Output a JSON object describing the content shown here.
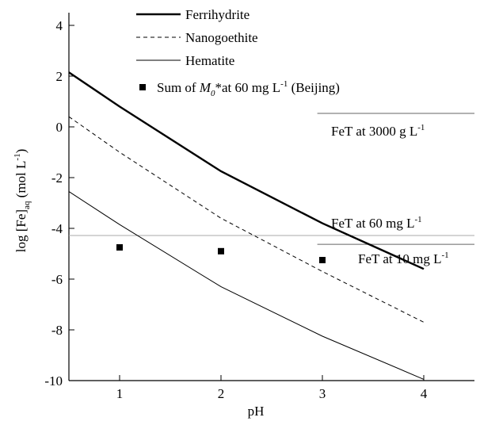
{
  "chart_data": {
    "type": "line",
    "x_label": "pH",
    "y_label": [
      {
        "text": "log [Fe]"
      },
      {
        "text": "aq",
        "style": "sub"
      },
      {
        "text": " (mol L"
      },
      {
        "text": "-1",
        "style": "sup"
      },
      {
        "text": ")"
      }
    ],
    "xlim": [
      0.5,
      4.5
    ],
    "ylim": [
      -10,
      4.5
    ],
    "xticks": [
      1,
      2,
      3,
      4
    ],
    "yticks": [
      -10,
      -8,
      -6,
      -4,
      -2,
      0,
      2,
      4
    ],
    "series": [
      {
        "name": [
          {
            "text": "Ferrihydrite"
          }
        ],
        "color": "#000000",
        "width": 2.4,
        "dash": "none",
        "x": [
          0.5,
          1,
          2,
          3,
          4
        ],
        "values": [
          2.15,
          0.8,
          -1.75,
          -3.8,
          -5.6
        ]
      },
      {
        "name": [
          {
            "text": "Nanogoethite"
          }
        ],
        "color": "#000000",
        "width": 1,
        "dash": "5,4",
        "x": [
          0.5,
          1,
          2,
          3,
          4
        ],
        "values": [
          0.4,
          -1.0,
          -3.6,
          -5.7,
          -7.7
        ]
      },
      {
        "name": [
          {
            "text": "Hematite"
          }
        ],
        "color": "#000000",
        "width": 1,
        "dash": "none",
        "x": [
          0.5,
          1,
          2,
          3,
          4
        ],
        "values": [
          -2.55,
          -3.85,
          -6.3,
          -8.25,
          -9.95
        ]
      },
      {
        "name": [
          {
            "text": "Sum of "
          },
          {
            "text": "M",
            "style": "italic"
          },
          {
            "text": "0",
            "style": "italic-sub"
          },
          {
            "text": "*at 60 mg L"
          },
          {
            "text": "-1",
            "style": "sup"
          },
          {
            "text": " (Beijing)"
          }
        ],
        "color": "#000000",
        "marker": "square",
        "x": [
          1,
          2,
          3
        ],
        "values": [
          -4.75,
          -4.9,
          -5.25
        ]
      }
    ],
    "reference_lines": [
      {
        "label": [
          {
            "text": "FeT at 3000 g L"
          },
          {
            "text": "-1",
            "style": "sup"
          }
        ],
        "value": 0.53,
        "x_range": [
          2.95,
          4.5
        ],
        "color": "#666666"
      },
      {
        "label": [
          {
            "text": "FeT at 60 mg L"
          },
          {
            "text": "-1",
            "style": "sup"
          }
        ],
        "value": -4.28,
        "x_range": [
          0.5,
          4.5
        ],
        "color": "#aaaaaa"
      },
      {
        "label": [
          {
            "text": "FeT at 10 mg L"
          },
          {
            "text": "-1",
            "style": "sup"
          }
        ],
        "value": -4.63,
        "x_range": [
          2.95,
          4.5
        ],
        "color": "#666666"
      }
    ]
  }
}
